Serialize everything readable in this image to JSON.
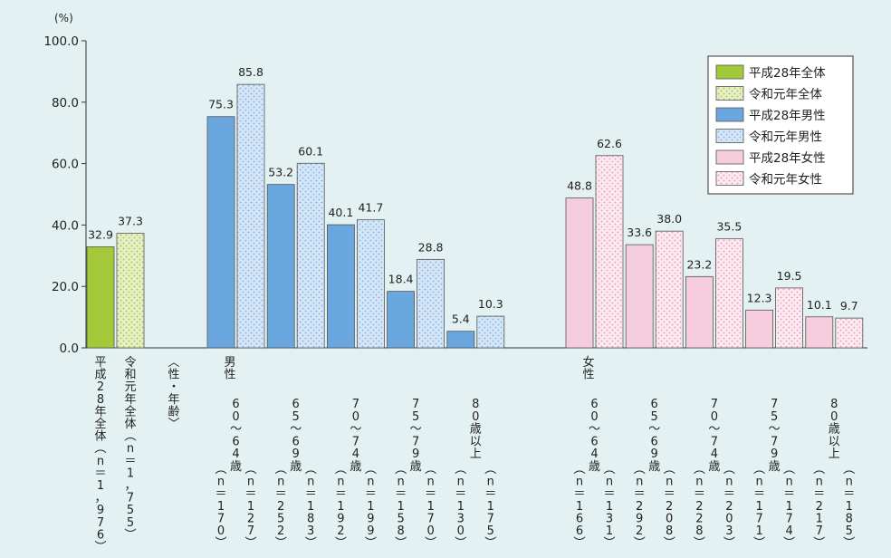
{
  "chart_data": {
    "type": "bar",
    "y_unit_label": "(%)",
    "ylim": [
      0,
      100
    ],
    "y_ticks": [
      "0.0",
      "20.0",
      "40.0",
      "60.0",
      "80.0",
      "100.0"
    ],
    "grid": false,
    "legend_position": "top-right",
    "legend": [
      {
        "label": "平成28年全体",
        "style": "solid",
        "color": "#a3c93a"
      },
      {
        "label": "令和元年全体",
        "style": "dotted",
        "color": "#e6f0c4"
      },
      {
        "label": "平成28年男性",
        "style": "solid",
        "color": "#6aa7de"
      },
      {
        "label": "令和元年男性",
        "style": "dotted",
        "color": "#d4e6f7"
      },
      {
        "label": "平成28年女性",
        "style": "solid",
        "color": "#f5cddd"
      },
      {
        "label": "令和元年女性",
        "style": "dotted",
        "color": "#fdeaf1"
      }
    ],
    "separator_label": "〈性・年齢〉",
    "groups": [
      {
        "label": "",
        "bars": [
          {
            "value": 32.9,
            "value_label": "32.9",
            "style": 0,
            "n_label": "平成28年全体（n＝1，976）"
          },
          {
            "value": 37.3,
            "value_label": "37.3",
            "style": 1,
            "n_label": "令和元年全体（n＝1，755）"
          }
        ]
      },
      {
        "label": "男性",
        "subgroups": [
          {
            "label": "60〜64歳",
            "bars": [
              {
                "value": 75.3,
                "value_label": "75.3",
                "style": 2,
                "n_label": "（n＝170）"
              },
              {
                "value": 85.8,
                "value_label": "85.8",
                "style": 3,
                "n_label": "（n＝127）"
              }
            ]
          },
          {
            "label": "65〜69歳",
            "bars": [
              {
                "value": 53.2,
                "value_label": "53.2",
                "style": 2,
                "n_label": "（n＝252）"
              },
              {
                "value": 60.1,
                "value_label": "60.1",
                "style": 3,
                "n_label": "（n＝183）"
              }
            ]
          },
          {
            "label": "70〜74歳",
            "bars": [
              {
                "value": 40.1,
                "value_label": "40.1",
                "style": 2,
                "n_label": "（n＝192）"
              },
              {
                "value": 41.7,
                "value_label": "41.7",
                "style": 3,
                "n_label": "（n＝199）"
              }
            ]
          },
          {
            "label": "75〜79歳",
            "bars": [
              {
                "value": 18.4,
                "value_label": "18.4",
                "style": 2,
                "n_label": "（n＝158）"
              },
              {
                "value": 28.8,
                "value_label": "28.8",
                "style": 3,
                "n_label": "（n＝170）"
              }
            ]
          },
          {
            "label": "80歳以上",
            "bars": [
              {
                "value": 5.4,
                "value_label": "5.4",
                "style": 2,
                "n_label": "（n＝130）"
              },
              {
                "value": 10.3,
                "value_label": "10.3",
                "style": 3,
                "n_label": "（n＝175）"
              }
            ]
          }
        ]
      },
      {
        "label": "女性",
        "subgroups": [
          {
            "label": "60〜64歳",
            "bars": [
              {
                "value": 48.8,
                "value_label": "48.8",
                "style": 4,
                "n_label": "（n＝166）"
              },
              {
                "value": 62.6,
                "value_label": "62.6",
                "style": 5,
                "n_label": "（n＝131）"
              }
            ]
          },
          {
            "label": "65〜69歳",
            "bars": [
              {
                "value": 33.6,
                "value_label": "33.6",
                "style": 4,
                "n_label": "（n＝292）"
              },
              {
                "value": 38.0,
                "value_label": "38.0",
                "style": 5,
                "n_label": "（n＝208）"
              }
            ]
          },
          {
            "label": "70〜74歳",
            "bars": [
              {
                "value": 23.2,
                "value_label": "23.2",
                "style": 4,
                "n_label": "（n＝228）"
              },
              {
                "value": 35.5,
                "value_label": "35.5",
                "style": 5,
                "n_label": "（n＝203）"
              }
            ]
          },
          {
            "label": "75〜79歳",
            "bars": [
              {
                "value": 12.3,
                "value_label": "12.3",
                "style": 4,
                "n_label": "（n＝171）"
              },
              {
                "value": 19.5,
                "value_label": "19.5",
                "style": 5,
                "n_label": "（n＝174）"
              }
            ]
          },
          {
            "label": "80歳以上",
            "bars": [
              {
                "value": 10.1,
                "value_label": "10.1",
                "style": 4,
                "n_label": "（n＝217）"
              },
              {
                "value": 9.7,
                "value_label": "9.7",
                "style": 5,
                "n_label": "（n＝185）"
              }
            ]
          }
        ]
      }
    ]
  }
}
